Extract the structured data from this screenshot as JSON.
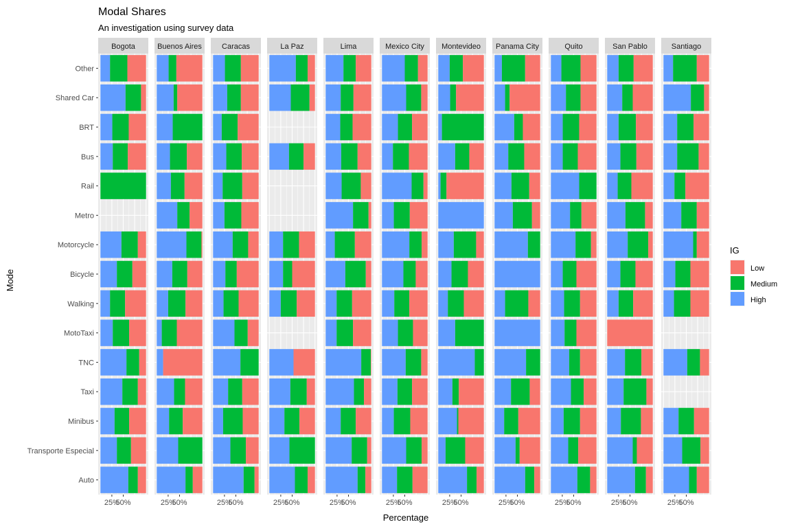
{
  "chart_data": {
    "type": "bar",
    "orientation": "horizontal",
    "stacked": true,
    "title": "Modal Shares",
    "subtitle": "An investigation using survey data",
    "xlabel": "Percentage",
    "ylabel": "Mode",
    "xlim": [
      0,
      1
    ],
    "x_tick_labels": [
      "25%",
      "50%"
    ],
    "x_tick_values": [
      0.25,
      0.5
    ],
    "legend": {
      "title": "IG",
      "position": "right",
      "entries": [
        {
          "label": "Low",
          "color": "#F8766D"
        },
        {
          "label": "Medium",
          "color": "#00BA38"
        },
        {
          "label": "High",
          "color": "#619CFF"
        }
      ]
    },
    "grid": true,
    "stack_order_left_to_right": [
      "High",
      "Medium",
      "Low"
    ],
    "modes": [
      "Other",
      "Shared Car",
      "BRT",
      "Bus",
      "Rail",
      "Metro",
      "Motorcycle",
      "Bicycle",
      "Walking",
      "MotoTaxi",
      "TNC",
      "Taxi",
      "Minibus",
      "Transporte Especial",
      "Auto"
    ],
    "panels": [
      {
        "city": "Bogota",
        "values": {
          "Other": [
            0.21,
            0.38,
            0.41
          ],
          "Shared Car": [
            0.55,
            0.34,
            0.11
          ],
          "BRT": [
            0.26,
            0.36,
            0.38
          ],
          "Bus": [
            0.27,
            0.33,
            0.4
          ],
          "Rail": [
            0.0,
            1.0,
            0.0
          ],
          "Metro": null,
          "Motorcycle": [
            0.46,
            0.36,
            0.18
          ],
          "Bicycle": [
            0.36,
            0.34,
            0.3
          ],
          "Walking": [
            0.21,
            0.33,
            0.46
          ],
          "MotoTaxi": [
            0.27,
            0.36,
            0.37
          ],
          "TNC": [
            0.57,
            0.28,
            0.15
          ],
          "Taxi": [
            0.48,
            0.34,
            0.18
          ],
          "Minibus": [
            0.31,
            0.32,
            0.37
          ],
          "Transporte Especial": [
            0.36,
            0.31,
            0.33
          ],
          "Auto": [
            0.61,
            0.21,
            0.18
          ]
        }
      },
      {
        "city": "Buenos Aires",
        "values": {
          "Other": [
            0.26,
            0.17,
            0.57
          ],
          "Shared Car": [
            0.37,
            0.08,
            0.55
          ],
          "BRT": [
            0.35,
            0.65,
            0.0
          ],
          "Bus": [
            0.29,
            0.37,
            0.34
          ],
          "Rail": [
            0.31,
            0.3,
            0.39
          ],
          "Metro": [
            0.45,
            0.27,
            0.28
          ],
          "Motorcycle": [
            0.65,
            0.33,
            0.02
          ],
          "Bicycle": [
            0.34,
            0.33,
            0.33
          ],
          "Walking": [
            0.25,
            0.38,
            0.37
          ],
          "MotoTaxi": [
            0.11,
            0.33,
            0.56
          ],
          "TNC": [
            0.14,
            0.0,
            0.86
          ],
          "Taxi": [
            0.38,
            0.24,
            0.38
          ],
          "Minibus": [
            0.27,
            0.3,
            0.43
          ],
          "Transporte Especial": [
            0.47,
            0.53,
            0.0
          ],
          "Auto": [
            0.63,
            0.16,
            0.21
          ]
        }
      },
      {
        "city": "Caracas",
        "values": {
          "Other": [
            0.26,
            0.35,
            0.39
          ],
          "Shared Car": [
            0.31,
            0.3,
            0.39
          ],
          "BRT": [
            0.19,
            0.35,
            0.46
          ],
          "Bus": [
            0.29,
            0.34,
            0.37
          ],
          "Rail": [
            0.21,
            0.43,
            0.36
          ],
          "Metro": [
            0.25,
            0.37,
            0.38
          ],
          "Motorcycle": [
            0.43,
            0.34,
            0.23
          ],
          "Bicycle": [
            0.27,
            0.25,
            0.48
          ],
          "Walking": [
            0.23,
            0.33,
            0.44
          ],
          "MotoTaxi": [
            0.47,
            0.29,
            0.24
          ],
          "TNC": [
            0.6,
            0.4,
            0.0
          ],
          "Taxi": [
            0.33,
            0.31,
            0.36
          ],
          "Minibus": [
            0.22,
            0.43,
            0.35
          ],
          "Transporte Especial": [
            0.38,
            0.34,
            0.28
          ],
          "Auto": [
            0.67,
            0.24,
            0.09
          ]
        }
      },
      {
        "city": "La Paz",
        "values": {
          "Other": [
            0.58,
            0.26,
            0.16
          ],
          "Shared Car": [
            0.47,
            0.41,
            0.12
          ],
          "BRT": null,
          "Bus": [
            0.43,
            0.32,
            0.25
          ],
          "Rail": null,
          "Metro": null,
          "Motorcycle": [
            0.3,
            0.35,
            0.35
          ],
          "Bicycle": [
            0.3,
            0.2,
            0.5
          ],
          "Walking": [
            0.25,
            0.35,
            0.4
          ],
          "MotoTaxi": null,
          "TNC": [
            0.53,
            0.0,
            0.47
          ],
          "Taxi": [
            0.46,
            0.36,
            0.18
          ],
          "Minibus": [
            0.33,
            0.33,
            0.34
          ],
          "Transporte Especial": [
            0.44,
            0.56,
            0.0
          ],
          "Auto": [
            0.56,
            0.28,
            0.16
          ]
        }
      },
      {
        "city": "Lima",
        "values": {
          "Other": [
            0.39,
            0.27,
            0.34
          ],
          "Shared Car": [
            0.33,
            0.28,
            0.39
          ],
          "BRT": [
            0.32,
            0.27,
            0.41
          ],
          "Bus": [
            0.34,
            0.36,
            0.3
          ],
          "Rail": [
            0.35,
            0.42,
            0.23
          ],
          "Metro": [
            0.6,
            0.34,
            0.06
          ],
          "Motorcycle": [
            0.2,
            0.44,
            0.36
          ],
          "Bicycle": [
            0.43,
            0.45,
            0.12
          ],
          "Walking": [
            0.24,
            0.34,
            0.42
          ],
          "MotoTaxi": [
            0.24,
            0.36,
            0.4
          ],
          "TNC": [
            0.78,
            0.21,
            0.01
          ],
          "Taxi": [
            0.62,
            0.22,
            0.16
          ],
          "Minibus": [
            0.33,
            0.33,
            0.34
          ],
          "Transporte Especial": [
            0.57,
            0.34,
            0.09
          ],
          "Auto": [
            0.7,
            0.17,
            0.13
          ]
        }
      },
      {
        "city": "Mexico City",
        "values": {
          "Other": [
            0.5,
            0.29,
            0.21
          ],
          "Shared Car": [
            0.53,
            0.33,
            0.14
          ],
          "BRT": [
            0.35,
            0.31,
            0.34
          ],
          "Bus": [
            0.24,
            0.35,
            0.41
          ],
          "Rail": [
            0.65,
            0.26,
            0.09
          ],
          "Metro": [
            0.26,
            0.35,
            0.39
          ],
          "Motorcycle": [
            0.6,
            0.27,
            0.13
          ],
          "Bicycle": [
            0.47,
            0.27,
            0.26
          ],
          "Walking": [
            0.27,
            0.33,
            0.4
          ],
          "MotoTaxi": [
            0.35,
            0.33,
            0.32
          ],
          "TNC": [
            0.52,
            0.34,
            0.14
          ],
          "Taxi": [
            0.34,
            0.32,
            0.34
          ],
          "Minibus": [
            0.26,
            0.36,
            0.38
          ],
          "Transporte Especial": [
            0.53,
            0.34,
            0.13
          ],
          "Auto": [
            0.33,
            0.34,
            0.33
          ]
        }
      },
      {
        "city": "Montevideo",
        "values": {
          "Other": [
            0.25,
            0.29,
            0.46
          ],
          "Shared Car": [
            0.26,
            0.13,
            0.61
          ],
          "BRT": [
            0.08,
            0.92,
            0.0
          ],
          "Bus": [
            0.37,
            0.31,
            0.32
          ],
          "Rail": [
            0.05,
            0.13,
            0.82
          ],
          "Metro": [
            1.0,
            0.0,
            0.0
          ],
          "Motorcycle": [
            0.34,
            0.49,
            0.17
          ],
          "Bicycle": [
            0.29,
            0.36,
            0.35
          ],
          "Walking": [
            0.21,
            0.35,
            0.44
          ],
          "MotoTaxi": [
            0.37,
            0.63,
            0.0
          ],
          "TNC": [
            0.8,
            0.2,
            0.0
          ],
          "Taxi": [
            0.31,
            0.14,
            0.55
          ],
          "Minibus": [
            0.41,
            0.03,
            0.56
          ],
          "Transporte Especial": [
            0.16,
            0.43,
            0.41
          ],
          "Auto": [
            0.63,
            0.21,
            0.16
          ]
        }
      },
      {
        "city": "Panama City",
        "values": {
          "Other": [
            0.16,
            0.51,
            0.33
          ],
          "Shared Car": [
            0.23,
            0.1,
            0.67
          ],
          "BRT": [
            0.43,
            0.19,
            0.38
          ],
          "Bus": [
            0.3,
            0.35,
            0.35
          ],
          "Rail": [
            0.37,
            0.39,
            0.24
          ],
          "Metro": [
            0.4,
            0.42,
            0.18
          ],
          "Motorcycle": [
            0.73,
            0.27,
            0.0
          ],
          "Bicycle": [
            1.0,
            0.0,
            0.0
          ],
          "Walking": [
            0.23,
            0.51,
            0.26
          ],
          "MotoTaxi": [
            1.0,
            0.0,
            0.0
          ],
          "TNC": [
            0.69,
            0.31,
            0.0
          ],
          "Taxi": [
            0.36,
            0.41,
            0.23
          ],
          "Minibus": [
            0.21,
            0.31,
            0.48
          ],
          "Transporte Especial": [
            0.46,
            0.09,
            0.45
          ],
          "Auto": [
            0.67,
            0.2,
            0.13
          ]
        }
      },
      {
        "city": "Quito",
        "values": {
          "Other": [
            0.23,
            0.42,
            0.35
          ],
          "Shared Car": [
            0.33,
            0.32,
            0.35
          ],
          "BRT": [
            0.26,
            0.36,
            0.38
          ],
          "Bus": [
            0.26,
            0.33,
            0.41
          ],
          "Rail": [
            0.62,
            0.38,
            0.0
          ],
          "Metro": [
            0.42,
            0.25,
            0.33
          ],
          "Motorcycle": [
            0.54,
            0.34,
            0.12
          ],
          "Bicycle": [
            0.26,
            0.3,
            0.44
          ],
          "Walking": [
            0.29,
            0.35,
            0.36
          ],
          "MotoTaxi": [
            0.3,
            0.26,
            0.44
          ],
          "TNC": [
            0.4,
            0.24,
            0.36
          ],
          "Taxi": [
            0.44,
            0.28,
            0.28
          ],
          "Minibus": [
            0.28,
            0.36,
            0.36
          ],
          "Transporte Especial": [
            0.38,
            0.22,
            0.4
          ],
          "Auto": [
            0.58,
            0.28,
            0.14
          ]
        }
      },
      {
        "city": "San Pablo",
        "values": {
          "Other": [
            0.25,
            0.33,
            0.42
          ],
          "Shared Car": [
            0.33,
            0.23,
            0.44
          ],
          "BRT": [
            0.25,
            0.38,
            0.37
          ],
          "Bus": [
            0.29,
            0.35,
            0.36
          ],
          "Rail": [
            0.23,
            0.3,
            0.47
          ],
          "Metro": [
            0.4,
            0.43,
            0.17
          ],
          "Motorcycle": [
            0.45,
            0.45,
            0.1
          ],
          "Bicycle": [
            0.29,
            0.33,
            0.38
          ],
          "Walking": [
            0.25,
            0.32,
            0.43
          ],
          "MotoTaxi": [
            0.0,
            0.0,
            1.0
          ],
          "TNC": [
            0.39,
            0.36,
            0.25
          ],
          "Taxi": [
            0.36,
            0.5,
            0.14
          ],
          "Minibus": [
            0.3,
            0.44,
            0.26
          ],
          "Transporte Especial": [
            0.56,
            0.09,
            0.35
          ],
          "Auto": [
            0.61,
            0.24,
            0.15
          ]
        }
      },
      {
        "city": "Santiago",
        "values": {
          "Other": [
            0.21,
            0.52,
            0.27
          ],
          "Shared Car": [
            0.6,
            0.29,
            0.11
          ],
          "BRT": [
            0.3,
            0.36,
            0.34
          ],
          "Bus": [
            0.3,
            0.47,
            0.23
          ],
          "Rail": [
            0.24,
            0.24,
            0.52
          ],
          "Metro": [
            0.39,
            0.34,
            0.27
          ],
          "Motorcycle": [
            0.65,
            0.08,
            0.27
          ],
          "Bicycle": [
            0.26,
            0.33,
            0.41
          ],
          "Walking": [
            0.23,
            0.36,
            0.41
          ],
          "MotoTaxi": null,
          "TNC": [
            0.52,
            0.28,
            0.2
          ],
          "Taxi": null,
          "Minibus": [
            0.33,
            0.34,
            0.33
          ],
          "Transporte Especial": [
            0.41,
            0.4,
            0.19
          ],
          "Auto": [
            0.56,
            0.17,
            0.27
          ]
        }
      }
    ]
  }
}
